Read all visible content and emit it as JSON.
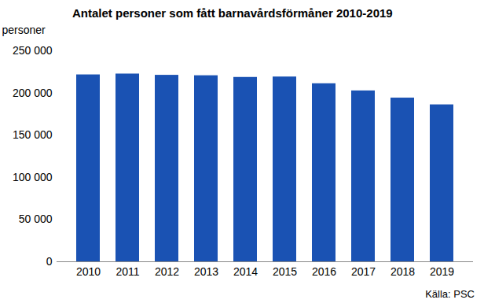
{
  "chart_data": {
    "type": "bar",
    "title": "Antalet personer som fått barnavårdsförmåner 2010-2019",
    "y_label": "personer",
    "source": "Källa: PSC",
    "categories": [
      "2010",
      "2011",
      "2012",
      "2013",
      "2014",
      "2015",
      "2016",
      "2017",
      "2018",
      "2019"
    ],
    "values": [
      221500,
      222500,
      221000,
      220500,
      218500,
      219000,
      211000,
      202500,
      194000,
      186000
    ],
    "color": "#1a52b3",
    "ylim": [
      0,
      250000
    ],
    "yticks": [
      0,
      {
        "value": 50000,
        "label": "50 000"
      },
      {
        "value": 100000,
        "label": "100 000"
      },
      {
        "value": 150000,
        "label": "150 000"
      },
      {
        "value": 200000,
        "label": "200 000"
      },
      {
        "value": 250000,
        "label": "250 000"
      }
    ],
    "grid": false
  }
}
